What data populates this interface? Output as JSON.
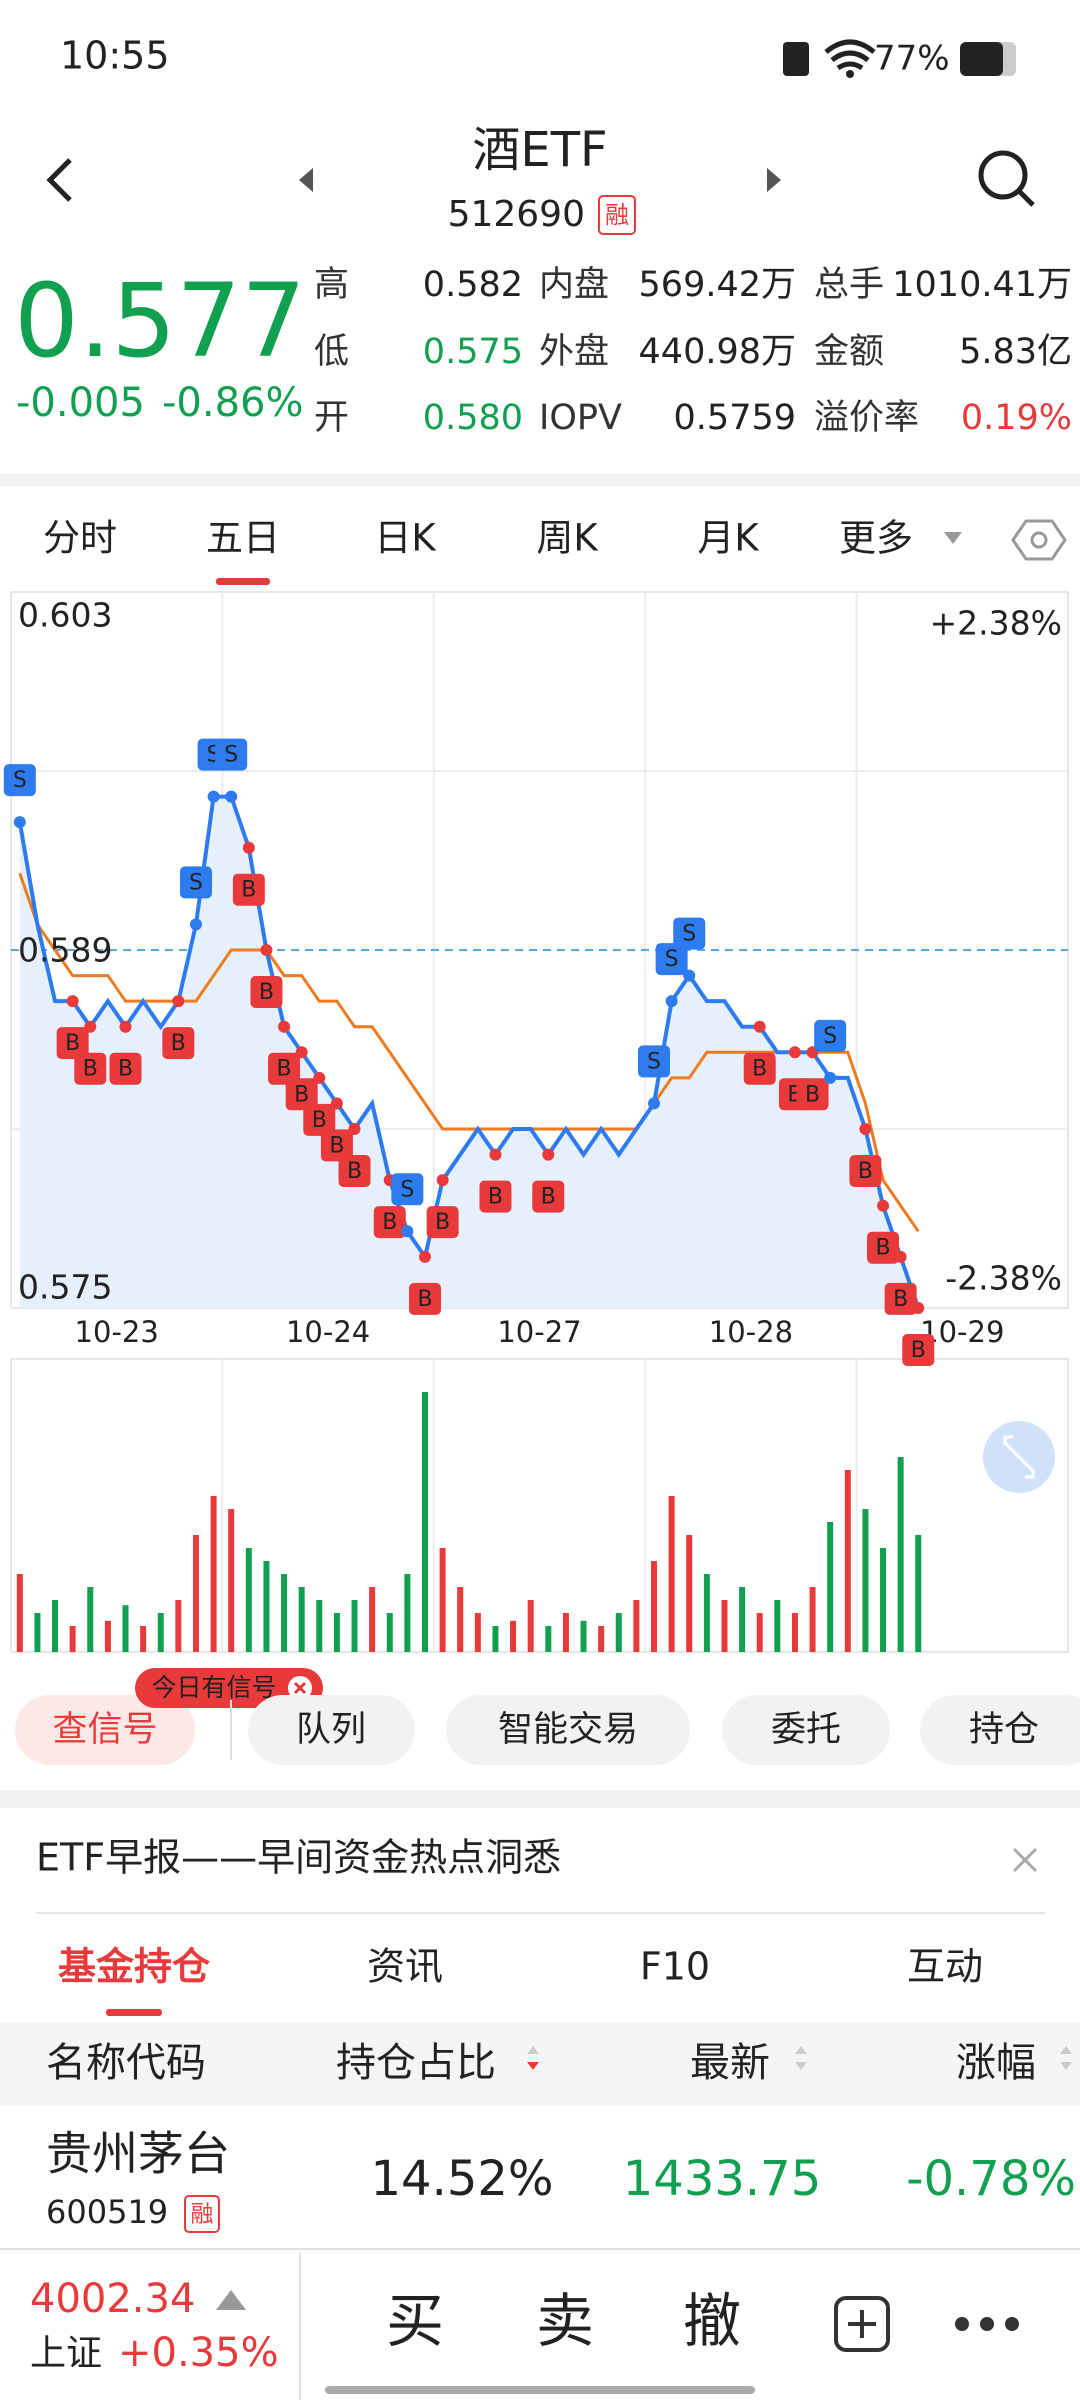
{
  "status_bar": {
    "time": "10:55",
    "battery": "77%"
  },
  "header": {
    "title": "酒ETF",
    "code": "512690",
    "badge": "融"
  },
  "quote": {
    "price": "0.577",
    "change": "-0.005",
    "change_pct": "-0.86%",
    "stats": [
      {
        "label": "高",
        "value": "0.582"
      },
      {
        "label": "内盘",
        "value": "569.42万"
      },
      {
        "label": "总手",
        "value": "1010.41万"
      },
      {
        "label": "低",
        "value": "0.575"
      },
      {
        "label": "外盘",
        "value": "440.98万"
      },
      {
        "label": "金额",
        "value": "5.83亿"
      },
      {
        "label": "开",
        "value": "0.580"
      },
      {
        "label": "IOPV",
        "value": "0.5759"
      },
      {
        "label": "溢价率",
        "value": "0.19%"
      }
    ]
  },
  "chart_tabs": [
    "分时",
    "五日",
    "日K",
    "周K",
    "月K",
    "更多"
  ],
  "chart": {
    "ylim": [
      0.575,
      0.603
    ],
    "ref": 0.589,
    "pct_top": "+2.38%",
    "pct_bottom": "-2.38%",
    "dates": [
      "10-23",
      "10-24",
      "10-27",
      "10-28",
      "10-29"
    ],
    "price": [
      0.594,
      0.59,
      0.587,
      0.587,
      0.586,
      0.587,
      0.586,
      0.587,
      0.586,
      0.587,
      0.59,
      0.595,
      0.595,
      0.593,
      0.589,
      0.586,
      0.585,
      0.584,
      0.583,
      0.582,
      0.583,
      0.58,
      0.578,
      0.577,
      0.58,
      0.581,
      0.582,
      0.581,
      0.582,
      0.582,
      0.581,
      0.582,
      0.581,
      0.582,
      0.581,
      0.582,
      0.583,
      0.587,
      0.588,
      0.587,
      0.587,
      0.586,
      0.586,
      0.585,
      0.585,
      0.585,
      0.584,
      0.584,
      0.582,
      0.579,
      0.577,
      0.575
    ],
    "avg": [
      0.592,
      0.59,
      0.589,
      0.588,
      0.588,
      0.588,
      0.587,
      0.587,
      0.587,
      0.587,
      0.587,
      0.588,
      0.589,
      0.589,
      0.589,
      0.588,
      0.588,
      0.587,
      0.587,
      0.586,
      0.586,
      0.585,
      0.584,
      0.583,
      0.582,
      0.582,
      0.582,
      0.582,
      0.582,
      0.582,
      0.582,
      0.582,
      0.582,
      0.582,
      0.582,
      0.582,
      0.583,
      0.584,
      0.584,
      0.585,
      0.585,
      0.585,
      0.585,
      0.585,
      0.585,
      0.585,
      0.585,
      0.585,
      0.583,
      0.58,
      0.579,
      0.578
    ],
    "volume": [
      30,
      15,
      20,
      10,
      25,
      12,
      18,
      10,
      15,
      20,
      45,
      60,
      55,
      40,
      35,
      30,
      25,
      20,
      15,
      20,
      25,
      15,
      30,
      100,
      40,
      25,
      15,
      10,
      12,
      20,
      10,
      15,
      12,
      10,
      15,
      20,
      35,
      60,
      45,
      30,
      20,
      25,
      15,
      20,
      15,
      25,
      50,
      70,
      55,
      40,
      75,
      45
    ],
    "signals": [
      "S",
      null,
      null,
      "B",
      "B",
      null,
      "B",
      null,
      null,
      "B",
      "S",
      "S",
      "S",
      "B",
      "B",
      "B",
      "B",
      "B",
      "B",
      "B",
      null,
      "B",
      "S",
      "B",
      "B",
      null,
      null,
      "B",
      null,
      null,
      "B",
      null,
      null,
      null,
      null,
      null,
      "S",
      "S",
      "S",
      null,
      null,
      null,
      "B",
      null,
      "B",
      "B",
      "S",
      null,
      "B",
      "B",
      "B",
      "B"
    ]
  },
  "actions": {
    "badge": "今日有信号",
    "buttons": [
      "查信号",
      "队列",
      "智能交易",
      "委托",
      "持仓"
    ]
  },
  "news": {
    "title": "ETF早报——早间资金热点洞悉"
  },
  "info_tabs": [
    "基金持仓",
    "资讯",
    "F10",
    "互动"
  ],
  "holdings": {
    "columns": [
      "名称代码",
      "持仓占比",
      "最新",
      "涨幅"
    ],
    "rows": [
      {
        "name": "贵州茅台",
        "code": "600519",
        "badge": "融",
        "weight": "14.52%",
        "price": "1433.75",
        "change": "-0.78%"
      }
    ]
  },
  "bottom_bar": {
    "index_value": "4002.34",
    "index_name": "上证",
    "index_change": "+0.35%",
    "trade_buttons": [
      "买",
      "卖",
      "撤"
    ]
  }
}
